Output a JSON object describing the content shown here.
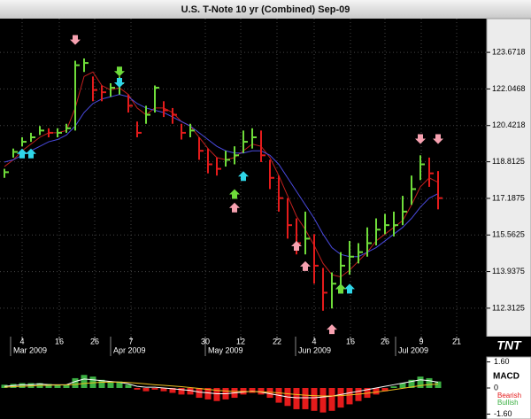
{
  "chart_data": {
    "type": "ohlc",
    "title": "U.S. T-Note 10 yr (Combined) Sep-09",
    "logo": "TNT",
    "x": [
      0,
      1,
      2,
      3,
      4,
      5,
      6,
      7,
      8,
      9,
      10,
      11,
      12,
      13,
      14,
      15,
      16,
      17,
      18,
      19,
      20,
      21,
      22,
      23,
      24,
      25,
      26,
      27,
      28,
      29,
      30,
      31,
      32,
      33,
      34,
      35,
      36,
      37,
      38,
      39,
      40,
      41,
      42,
      43,
      44,
      45,
      46,
      47,
      48,
      49
    ],
    "high": [
      118.5,
      119.4,
      119.9,
      120.1,
      120.4,
      120.3,
      120.3,
      120.5,
      123.3,
      123.4,
      122.6,
      122.2,
      122.3,
      122.6,
      121.8,
      120.6,
      121.3,
      122.2,
      121.5,
      121.2,
      120.5,
      120.5,
      119.9,
      119.4,
      119.0,
      119.3,
      119.5,
      120.2,
      120.3,
      120.2,
      118.9,
      118.2,
      117.2,
      116.3,
      116.6,
      115.6,
      114.1,
      113.9,
      114.8,
      115.3,
      115.2,
      115.9,
      116.3,
      116.5,
      116.6,
      117.3,
      118.2,
      119.1,
      119.0,
      118.4
    ],
    "low": [
      118.1,
      119.0,
      119.5,
      119.7,
      120.0,
      119.9,
      119.9,
      120.1,
      120.2,
      122.8,
      121.5,
      121.5,
      121.7,
      121.8,
      121.0,
      119.9,
      120.5,
      121.0,
      120.8,
      120.5,
      119.8,
      119.9,
      118.9,
      118.3,
      118.2,
      118.6,
      118.7,
      119.2,
      119.4,
      118.8,
      117.6,
      116.6,
      115.4,
      114.7,
      114.7,
      113.4,
      112.2,
      112.3,
      113.3,
      113.8,
      114.3,
      114.6,
      115.1,
      115.6,
      115.5,
      116.0,
      116.9,
      118.0,
      117.7,
      116.7
    ],
    "close": [
      118.35,
      119.25,
      119.7,
      119.9,
      120.2,
      120.1,
      120.1,
      120.3,
      123.1,
      123.2,
      122.0,
      121.9,
      122.1,
      122.3,
      121.3,
      120.1,
      120.9,
      122.1,
      121.1,
      120.9,
      120.1,
      120.2,
      119.3,
      118.7,
      118.5,
      118.9,
      119.1,
      119.7,
      119.9,
      119.1,
      118.1,
      117.2,
      116.0,
      115.2,
      115.4,
      114.2,
      113.0,
      113.4,
      114.2,
      114.6,
      114.8,
      115.2,
      115.8,
      116.0,
      116.0,
      116.6,
      117.6,
      118.7,
      118.3,
      117.2
    ],
    "up_color": "#6fdc3a",
    "down_color": "#e41b1b",
    "series": [
      {
        "color": "#c0201e",
        "values": [
          118.6,
          118.9,
          119.3,
          119.6,
          119.9,
          120.1,
          120.1,
          120.2,
          121.2,
          122.6,
          122.8,
          122.2,
          122.0,
          122.1,
          121.8,
          121.2,
          120.9,
          121.2,
          121.2,
          121.0,
          120.6,
          120.4,
          119.9,
          119.4,
          119.0,
          118.9,
          119.0,
          119.3,
          119.6,
          119.5,
          119.0,
          118.2,
          117.3,
          116.4,
          115.8,
          115.1,
          114.3,
          113.8,
          113.7,
          114.0,
          114.4,
          114.8,
          115.3,
          115.6,
          115.9,
          116.2,
          116.9,
          117.7,
          118.1,
          117.9
        ]
      },
      {
        "color": "#4a4ae0",
        "values": [
          118.8,
          118.9,
          119.1,
          119.3,
          119.5,
          119.7,
          119.8,
          120.0,
          120.4,
          121.0,
          121.4,
          121.6,
          121.7,
          121.8,
          121.7,
          121.4,
          121.2,
          121.1,
          121.0,
          120.8,
          120.6,
          120.4,
          120.1,
          119.8,
          119.5,
          119.3,
          119.2,
          119.2,
          119.3,
          119.3,
          119.1,
          118.7,
          118.1,
          117.5,
          116.9,
          116.3,
          115.6,
          115.0,
          114.7,
          114.6,
          114.6,
          114.8,
          115.0,
          115.3,
          115.6,
          115.9,
          116.3,
          116.8,
          117.2,
          117.4
        ]
      }
    ],
    "signals": [
      {
        "color": "#f7a1b0",
        "direction": "down",
        "x": [
          8,
          47,
          49
        ],
        "y": [
          124.2,
          119.8,
          119.8
        ]
      },
      {
        "color": "#f7a1b0",
        "direction": "up",
        "x": [
          26,
          33,
          34,
          37
        ],
        "y": [
          116.8,
          115.1,
          114.2,
          111.4
        ]
      },
      {
        "color": "#2fd6e8",
        "direction": "up",
        "x": [
          2,
          3,
          27,
          38,
          39
        ],
        "y": [
          119.2,
          119.2,
          118.2,
          113.2,
          113.2
        ]
      },
      {
        "color": "#6fdc3a",
        "direction": "up",
        "x": [
          26,
          38
        ],
        "y": [
          117.4,
          113.2
        ]
      },
      {
        "color": "#6fdc3a",
        "direction": "down",
        "x": [
          13
        ],
        "y": [
          122.8
        ]
      },
      {
        "color": "#2fd6e8",
        "direction": "down",
        "x": [
          13
        ],
        "y": [
          122.3
        ]
      }
    ],
    "xlim": [
      -0.5,
      54.5
    ],
    "ylim": [
      111.05,
      125.17
    ],
    "yticks": [
      112.3125,
      113.9375,
      115.5625,
      117.1875,
      118.8125,
      120.4218,
      122.0468,
      123.6718
    ],
    "xticks": [
      {
        "value": 2.0,
        "label": "4"
      },
      {
        "value": 6.2,
        "label": "16"
      },
      {
        "value": 10.2,
        "label": "26"
      },
      {
        "value": 14.3,
        "label": "7"
      },
      {
        "value": 22.7,
        "label": "30"
      },
      {
        "value": 26.7,
        "label": "12"
      },
      {
        "value": 30.8,
        "label": "22"
      },
      {
        "value": 35.0,
        "label": "4"
      },
      {
        "value": 39.1,
        "label": "16"
      },
      {
        "value": 43.0,
        "label": "26"
      },
      {
        "value": 47.1,
        "label": "9"
      },
      {
        "value": 51.1,
        "label": "21"
      }
    ],
    "month_ticks": [
      {
        "value": 1.0,
        "label": "Mar 2009"
      },
      {
        "value": 12.3,
        "label": "Apr 2009"
      },
      {
        "value": 23.0,
        "label": "May 2009"
      },
      {
        "value": 33.2,
        "label": "Jun 2009"
      },
      {
        "value": 44.5,
        "label": "Jul 2009"
      }
    ],
    "grid": true,
    "macd": {
      "title": "MACD",
      "histogram": [
        0.2,
        0.25,
        0.3,
        0.3,
        0.3,
        0.25,
        0.2,
        0.2,
        0.6,
        0.8,
        0.7,
        0.5,
        0.4,
        0.4,
        0.2,
        -0.1,
        -0.2,
        -0.1,
        -0.2,
        -0.3,
        -0.4,
        -0.4,
        -0.6,
        -0.7,
        -0.8,
        -0.7,
        -0.6,
        -0.4,
        -0.3,
        -0.4,
        -0.6,
        -0.9,
        -1.1,
        -1.3,
        -1.3,
        -1.4,
        -1.5,
        -1.4,
        -1.2,
        -1.0,
        -0.8,
        -0.6,
        -0.4,
        -0.2,
        0.1,
        0.3,
        0.5,
        0.7,
        0.6,
        0.4
      ],
      "legend": [
        {
          "name": "Bearish",
          "color": "#e41b1b"
        },
        {
          "name": "Bullish",
          "color": "#3cb043"
        }
      ],
      "series": [
        {
          "color": "#ffffff",
          "values": [
            0.1,
            0.15,
            0.2,
            0.2,
            0.25,
            0.2,
            0.2,
            0.2,
            0.4,
            0.55,
            0.5,
            0.45,
            0.4,
            0.35,
            0.25,
            0.1,
            0.05,
            0.05,
            0.0,
            -0.05,
            -0.1,
            -0.15,
            -0.25,
            -0.3,
            -0.35,
            -0.35,
            -0.3,
            -0.25,
            -0.2,
            -0.25,
            -0.35,
            -0.45,
            -0.55,
            -0.6,
            -0.6,
            -0.6,
            -0.55,
            -0.5,
            -0.4,
            -0.3,
            -0.2,
            -0.1,
            0.0,
            0.1,
            0.2,
            0.3,
            0.4,
            0.5,
            0.45,
            0.35
          ]
        },
        {
          "color": "#f0c020",
          "values": [
            0.05,
            0.08,
            0.1,
            0.13,
            0.15,
            0.17,
            0.18,
            0.19,
            0.22,
            0.28,
            0.32,
            0.35,
            0.36,
            0.36,
            0.34,
            0.3,
            0.25,
            0.2,
            0.16,
            0.12,
            0.08,
            0.03,
            -0.03,
            -0.09,
            -0.14,
            -0.18,
            -0.21,
            -0.22,
            -0.22,
            -0.23,
            -0.26,
            -0.3,
            -0.35,
            -0.4,
            -0.44,
            -0.47,
            -0.49,
            -0.49,
            -0.47,
            -0.43,
            -0.38,
            -0.32,
            -0.25,
            -0.18,
            -0.1,
            -0.02,
            0.06,
            0.15,
            0.21,
            0.24
          ]
        }
      ],
      "ylim": [
        -1.9,
        1.9
      ],
      "yticks": [
        {
          "value": 1.6,
          "label": "1.60"
        },
        0,
        {
          "value": -1.6,
          "label": "-1.60"
        }
      ]
    }
  }
}
